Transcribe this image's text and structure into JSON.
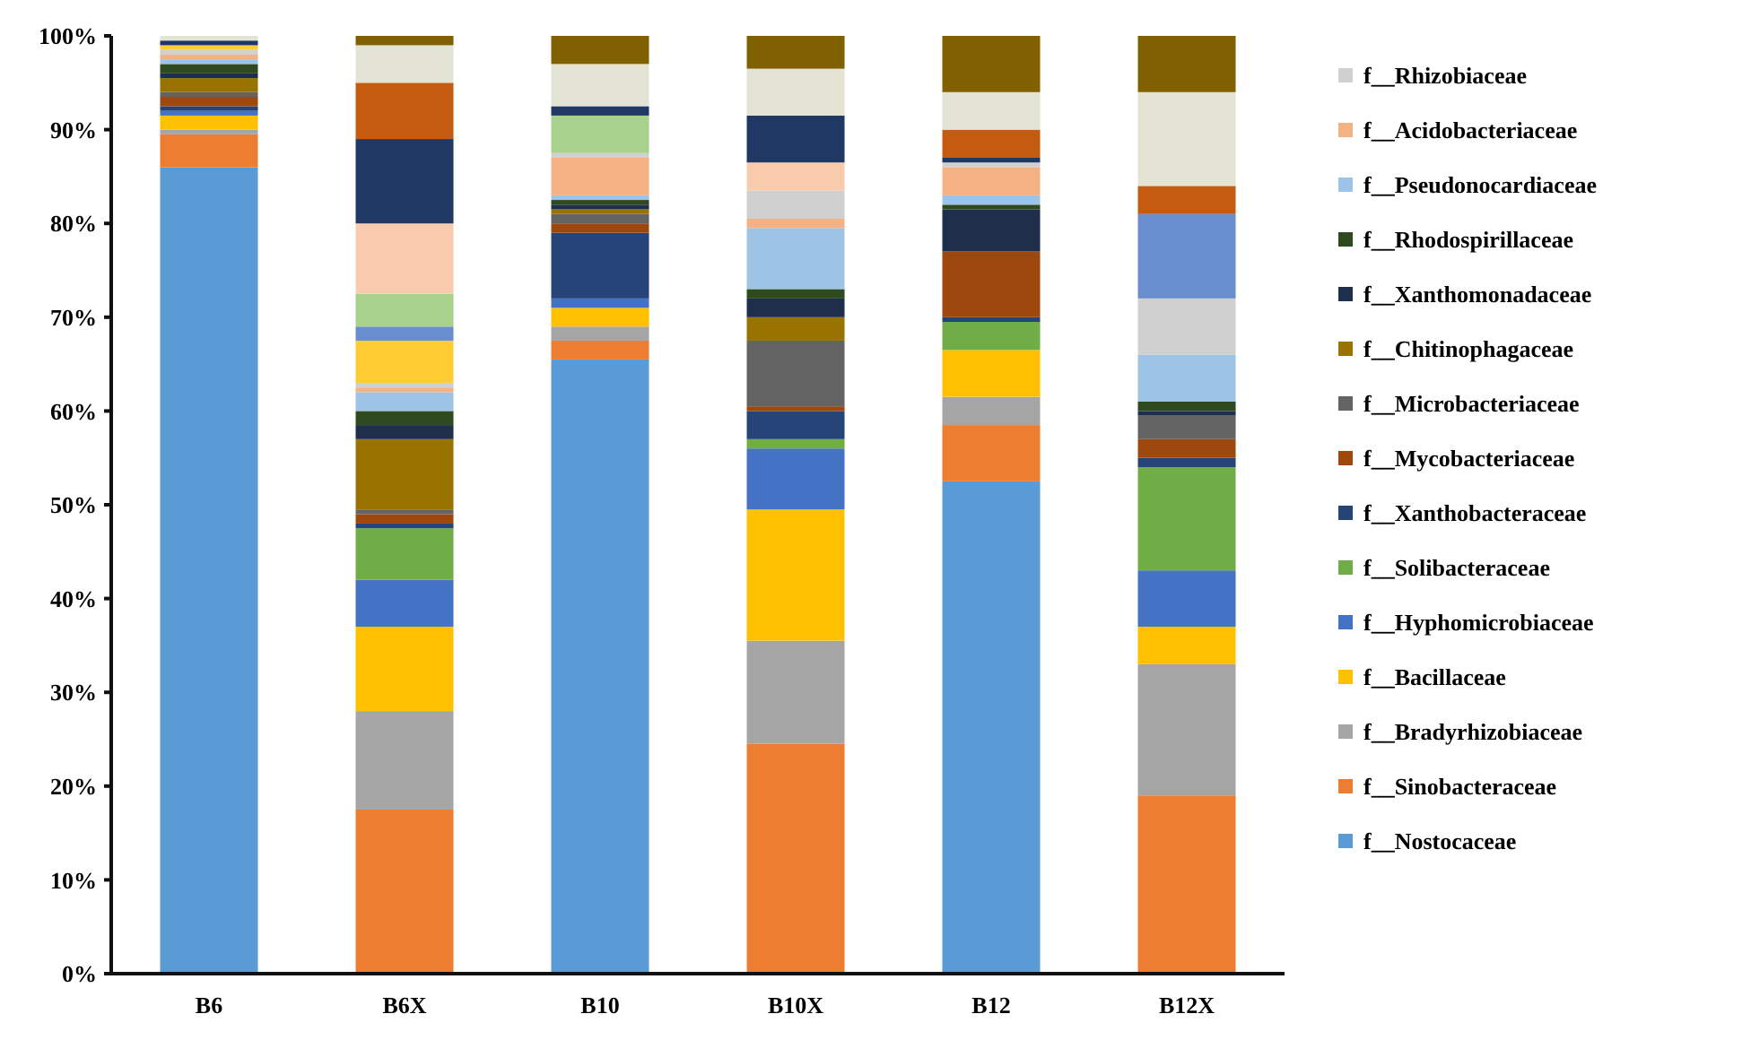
{
  "chart_data": {
    "type": "bar",
    "stacked": true,
    "categories": [
      "B6",
      "B6X",
      "B10",
      "B10X",
      "B12",
      "B12X"
    ],
    "ylim": [
      0,
      100
    ],
    "yticks": [
      {
        "value": 0,
        "label": "0%"
      },
      {
        "value": 10,
        "label": "10%"
      },
      {
        "value": 20,
        "label": "20%"
      },
      {
        "value": 30,
        "label": "30%"
      },
      {
        "value": 40,
        "label": "40%"
      },
      {
        "value": 50,
        "label": "50%"
      },
      {
        "value": 60,
        "label": "60%"
      },
      {
        "value": 70,
        "label": "70%"
      },
      {
        "value": 80,
        "label": "80%"
      },
      {
        "value": 90,
        "label": "90%"
      },
      {
        "value": 100,
        "label": "100%"
      }
    ],
    "grid": false,
    "legend": "right",
    "series": [
      {
        "name": "f__Nostocaceae",
        "color": "#5b9bd5",
        "values": [
          86,
          0,
          65.5,
          0,
          52.5,
          0
        ]
      },
      {
        "name": "f__Sinobacteraceae",
        "color": "#ed7d31",
        "values": [
          3.5,
          17.5,
          2,
          24.5,
          6,
          19
        ]
      },
      {
        "name": "f__Bradyrhizobiaceae",
        "color": "#a5a5a5",
        "values": [
          0.5,
          10.5,
          1.5,
          11,
          3,
          14
        ]
      },
      {
        "name": "f__Bacillaceae",
        "color": "#ffc000",
        "values": [
          1.5,
          9,
          2,
          14,
          5,
          4
        ]
      },
      {
        "name": "f__Hyphomicrobiaceae",
        "color": "#4472c4",
        "values": [
          0.5,
          5,
          1,
          6.5,
          0,
          6
        ]
      },
      {
        "name": "f__Solibacteraceae",
        "color": "#70ad47",
        "values": [
          0,
          5.5,
          0,
          1,
          3,
          11
        ]
      },
      {
        "name": "f__Xanthobacteraceae",
        "color": "#264478",
        "values": [
          0.5,
          0.5,
          7,
          3,
          0.5,
          1
        ]
      },
      {
        "name": "f__Mycobacteriaceae",
        "color": "#9e480e",
        "values": [
          1,
          1,
          1,
          0.5,
          7,
          2
        ]
      },
      {
        "name": "f__Microbacteriaceae",
        "color": "#636363",
        "values": [
          0.5,
          0.5,
          1,
          7,
          0,
          2.5
        ]
      },
      {
        "name": "f__Chitinophagaceae",
        "color": "#997300",
        "values": [
          1.5,
          7.5,
          0.5,
          2.5,
          0,
          0
        ]
      },
      {
        "name": "f__Xanthomonadaceae",
        "color": "#1d2f4a",
        "values": [
          0.5,
          1.5,
          0.5,
          2,
          4.5,
          0.5
        ]
      },
      {
        "name": "f__Rhodospirillaceae",
        "color": "#2f4a1f",
        "values": [
          1,
          1.5,
          0.5,
          1,
          0.5,
          1
        ]
      },
      {
        "name": "f__Pseudonocardiaceae",
        "color": "#9dc3e6",
        "values": [
          0.5,
          2,
          0.5,
          6.5,
          1,
          5
        ]
      },
      {
        "name": "f__Acidobacteriaceae",
        "color": "#f4b183",
        "values": [
          0.5,
          0.5,
          4,
          1,
          3,
          0
        ]
      },
      {
        "name": "f__Rhizobiaceae",
        "color": "#d0d0d0",
        "values": [
          0.5,
          0.5,
          0.5,
          3,
          0.5,
          6
        ]
      },
      {
        "color": "#ffcd33",
        "values": [
          0.5,
          4.5,
          0,
          0,
          0,
          0
        ]
      },
      {
        "color": "#698ed0",
        "values": [
          0,
          1.5,
          0,
          0,
          0,
          9
        ]
      },
      {
        "color": "#a9d18e",
        "values": [
          0,
          3.5,
          4,
          0,
          0,
          0
        ]
      },
      {
        "color": "#f8cbad",
        "values": [
          0,
          7.5,
          0,
          3,
          0,
          0
        ]
      },
      {
        "color": "#1f3864",
        "values": [
          0.5,
          9,
          1,
          5,
          0.5,
          0
        ]
      },
      {
        "color": "#c55a11",
        "values": [
          0,
          6,
          0,
          0,
          3,
          3
        ]
      },
      {
        "color": "#e4e4d4",
        "values": [
          0.5,
          4,
          4.5,
          5,
          4,
          10
        ]
      },
      {
        "color": "#806000",
        "values": [
          0,
          1,
          3,
          3.5,
          6,
          6
        ]
      }
    ]
  }
}
